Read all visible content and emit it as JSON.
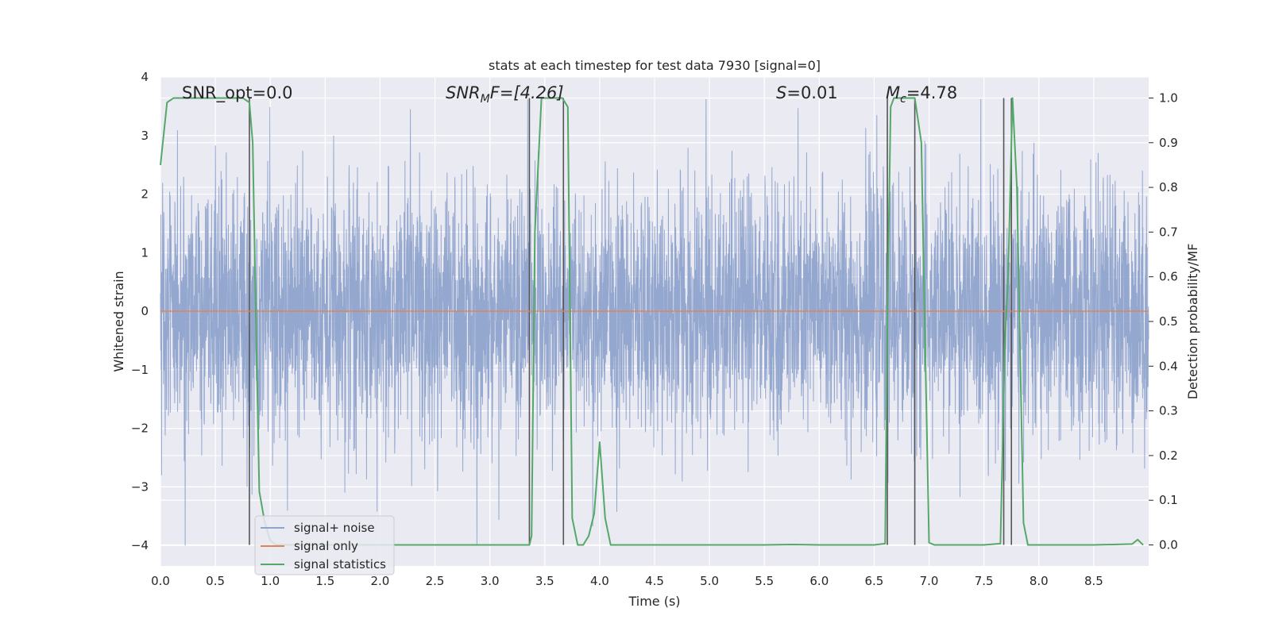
{
  "chart_data": {
    "type": "line",
    "title": "stats at each timestep for test data 7930 [signal=0]",
    "xlabel": "Time (s)",
    "ylabel_left": "Whitened strain",
    "ylabel_right": "Detection probability/MF",
    "xlim": [
      0.0,
      9.0
    ],
    "ylim_left": [
      -4.35,
      4.0
    ],
    "ylim_right": [
      -0.047,
      1.047
    ],
    "x_ticks": [
      "0.0",
      "0.5",
      "1.0",
      "1.5",
      "2.0",
      "2.5",
      "3.0",
      "3.5",
      "4.0",
      "4.5",
      "5.0",
      "5.5",
      "6.0",
      "6.5",
      "7.0",
      "7.5",
      "8.0",
      "8.5"
    ],
    "y_left_ticks": [
      "4",
      "3",
      "2",
      "1",
      "0",
      "−1",
      "−2",
      "−3",
      "−4"
    ],
    "y_right_ticks": [
      "1.0",
      "0.9",
      "0.8",
      "0.7",
      "0.6",
      "0.5",
      "0.4",
      "0.3",
      "0.2",
      "0.1",
      "0.0"
    ],
    "grid": true,
    "legend_position": "lower-left",
    "annotations": {
      "snr_opt": "SNR_opt=0.0",
      "snr_mf_prefix": "SNR",
      "snr_mf_sub": "M",
      "snr_mf_suffix": "F=[4.26]",
      "s_var": "S",
      "s_value": "=0.01",
      "mc_var": "M",
      "mc_sub": "c",
      "mc_value": "=4.78"
    },
    "series": [
      {
        "name": "signal+ noise",
        "color": "#8fa3cc",
        "description_values": "dense whitened noise between approximately -4 and 3.6 across 0-9 s"
      },
      {
        "name": "signal only",
        "color": "#dd8452",
        "x": [
          0.0,
          9.0
        ],
        "y": [
          0.0,
          0.0
        ]
      },
      {
        "name": "signal statistics",
        "color": "#55a868",
        "axis": "right",
        "x": [
          0.0,
          0.06,
          0.12,
          0.2,
          0.3,
          0.4,
          0.5,
          0.6,
          0.7,
          0.75,
          0.81,
          0.84,
          0.87,
          0.9,
          0.95,
          1.0,
          1.05,
          1.5,
          2.0,
          2.5,
          3.0,
          3.36,
          3.38,
          3.41,
          3.47,
          3.55,
          3.62,
          3.66,
          3.71,
          3.75,
          3.8,
          3.85,
          3.9,
          3.95,
          4.0,
          4.05,
          4.1,
          4.5,
          5.0,
          5.5,
          5.75,
          6.0,
          6.5,
          6.6,
          6.62,
          6.65,
          6.68,
          6.75,
          6.8,
          6.87,
          6.93,
          6.96,
          7.0,
          7.05,
          7.5,
          7.65,
          7.69,
          7.72,
          7.76,
          7.8,
          7.86,
          7.9,
          8.5,
          8.85,
          8.9,
          8.95
        ],
        "y": [
          0.85,
          0.99,
          1.0,
          1.0,
          1.0,
          1.0,
          1.0,
          1.0,
          1.0,
          1.0,
          0.99,
          0.9,
          0.5,
          0.12,
          0.05,
          0.01,
          0.0,
          0.0,
          0.0,
          0.0,
          0.0,
          0.0,
          0.02,
          0.7,
          1.0,
          1.0,
          1.0,
          1.0,
          0.98,
          0.06,
          0.0,
          0.0,
          0.02,
          0.07,
          0.23,
          0.06,
          0.0,
          0.0,
          0.0,
          0.0,
          0.001,
          0.0,
          0.0,
          0.003,
          0.5,
          0.98,
          1.0,
          1.0,
          1.0,
          1.0,
          0.9,
          0.5,
          0.005,
          0.0,
          0.0,
          0.003,
          0.45,
          0.6,
          1.0,
          0.8,
          0.05,
          0.0,
          0.0,
          0.002,
          0.012,
          0.0
        ]
      }
    ],
    "vertical_lines_x": [
      0.81,
      3.36,
      3.67,
      6.62,
      6.87,
      7.68,
      7.75
    ]
  }
}
